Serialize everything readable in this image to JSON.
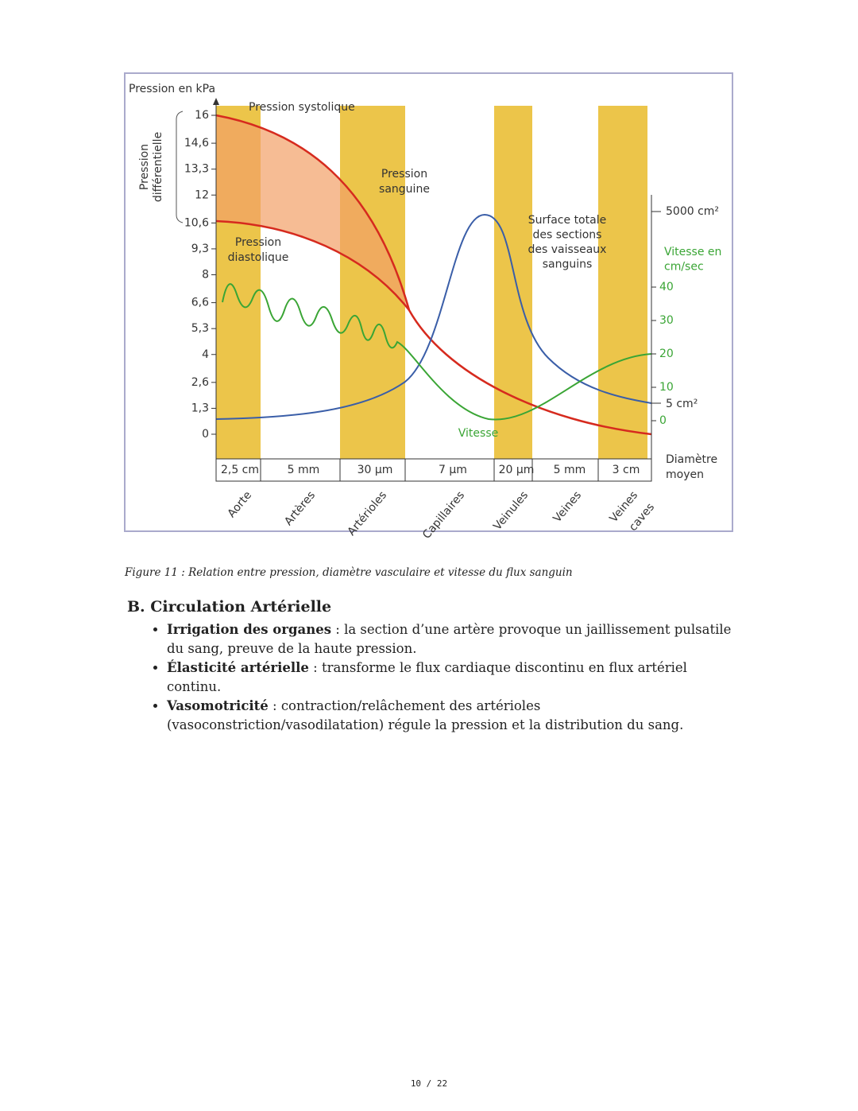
{
  "figure": {
    "y_axis_title": "Pression en kPa",
    "bracket_label": [
      "Pression",
      "différentielle"
    ],
    "yticks": [
      16,
      {
        "value": 14.6,
        "label": "14,6"
      },
      {
        "value": 13.3,
        "label": "13,3"
      },
      12,
      {
        "value": 10.6,
        "label": "10,6"
      },
      {
        "value": 9.3,
        "label": "9,3"
      },
      8,
      {
        "value": 6.6,
        "label": "6,6"
      },
      {
        "value": 5.3,
        "label": "5,3"
      },
      4,
      {
        "value": 2.6,
        "label": "2,6"
      },
      {
        "value": 1.3,
        "label": "1,3"
      },
      0
    ],
    "ylim": [
      0,
      16
    ],
    "systolic_label": [
      "Pression systolique"
    ],
    "blood_pressure_label": [
      "Pression",
      "sanguine"
    ],
    "diastolic_label": [
      "Pression",
      "diastolique"
    ],
    "surface_label": [
      "Surface totale",
      "des sections",
      "des vaisseaux",
      "sanguins"
    ],
    "speed_label": [
      "Vitesse"
    ],
    "surface_ticks": [
      "5000 cm²",
      "5 cm²"
    ],
    "right_axis_title": [
      "Vitesse en",
      "cm/sec"
    ],
    "y2ticks": [
      40,
      30,
      20,
      10,
      0
    ],
    "y2lim": [
      0,
      40
    ],
    "diameter_title": [
      "Diamètre",
      "moyen"
    ],
    "diameters": [
      "2,5 cm",
      "5 mm",
      "30 µm",
      "7 µm",
      "20 µm",
      "5 mm",
      "3 cm"
    ],
    "vessels": [
      [
        "Aorte"
      ],
      [
        "Artères"
      ],
      [
        "Artérioles"
      ],
      [
        "Capillaires"
      ],
      [
        "Veinules"
      ],
      [
        "Veines"
      ],
      [
        "Veines",
        "caves"
      ]
    ]
  },
  "caption": "Figure 11 : Relation entre pression, diamètre vasculaire et vitesse du flux sanguin",
  "section": {
    "heading": "B. Circulation Artérielle",
    "items": [
      {
        "term": "Irrigation des organes",
        "text": " : la section d’une artère provoque un jaillissement pulsatile du sang, preuve de la haute pression."
      },
      {
        "term": "Élasticité artérielle",
        "text": " : transforme le flux cardiaque discontinu en flux artériel continu."
      },
      {
        "term": "Vasomotricité",
        "text": " : contraction/relâchement des artérioles (vasoconstriction/vasodilatation) régule la pression et la distribution du sang."
      }
    ]
  },
  "footer": "10 / 22"
}
